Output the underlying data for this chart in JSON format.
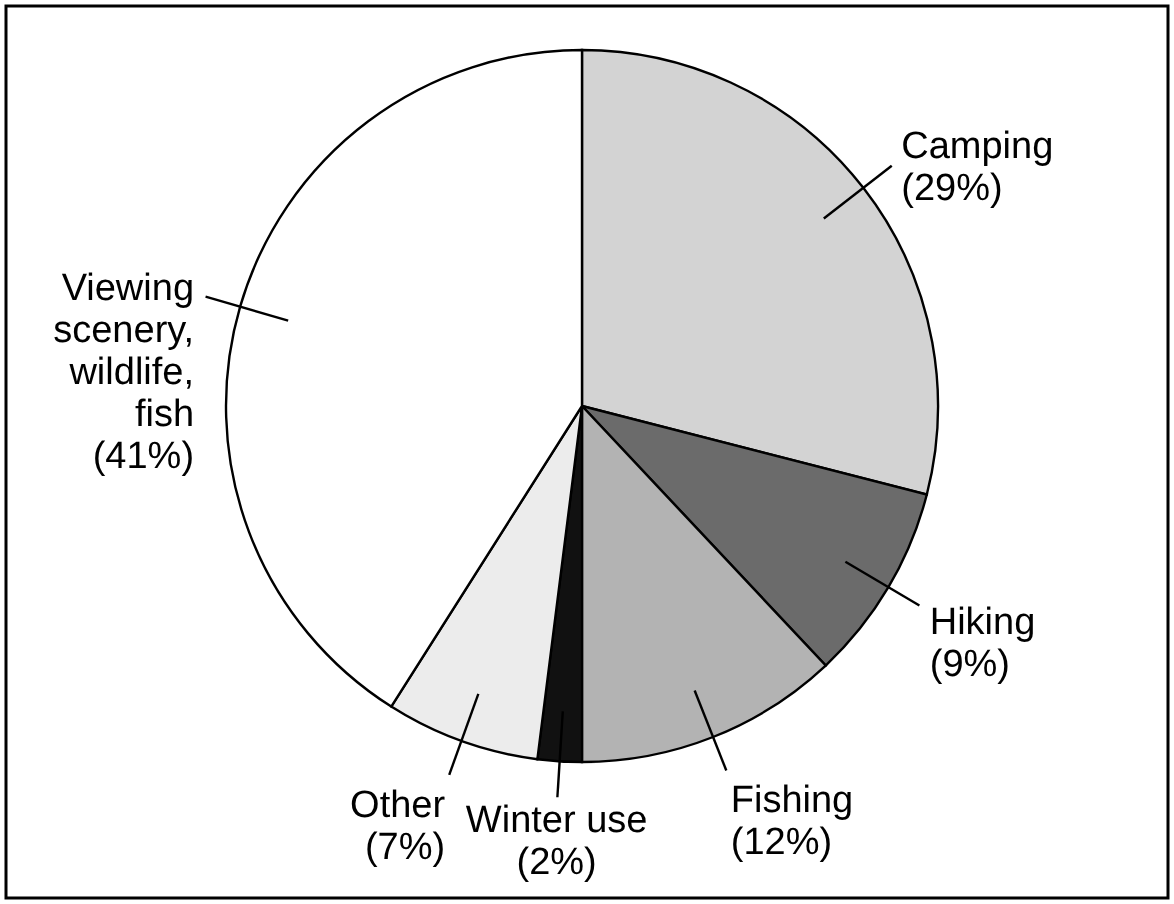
{
  "chart_data": {
    "type": "pie",
    "categories": [
      "Camping",
      "Hiking",
      "Fishing",
      "Winter use",
      "Other",
      "Viewing\nscenery,\nwildlife,\nfish"
    ],
    "values": [
      29,
      9,
      12,
      2,
      7,
      41
    ],
    "value_labels": [
      "(29%)",
      "(9%)",
      "(12%)",
      "(2%)",
      "(7%)",
      "(41%)"
    ],
    "colors": [
      "#d3d3d3",
      "#6b6b6b",
      "#b3b3b3",
      "#111111",
      "#ececec",
      "#ffffff"
    ]
  }
}
